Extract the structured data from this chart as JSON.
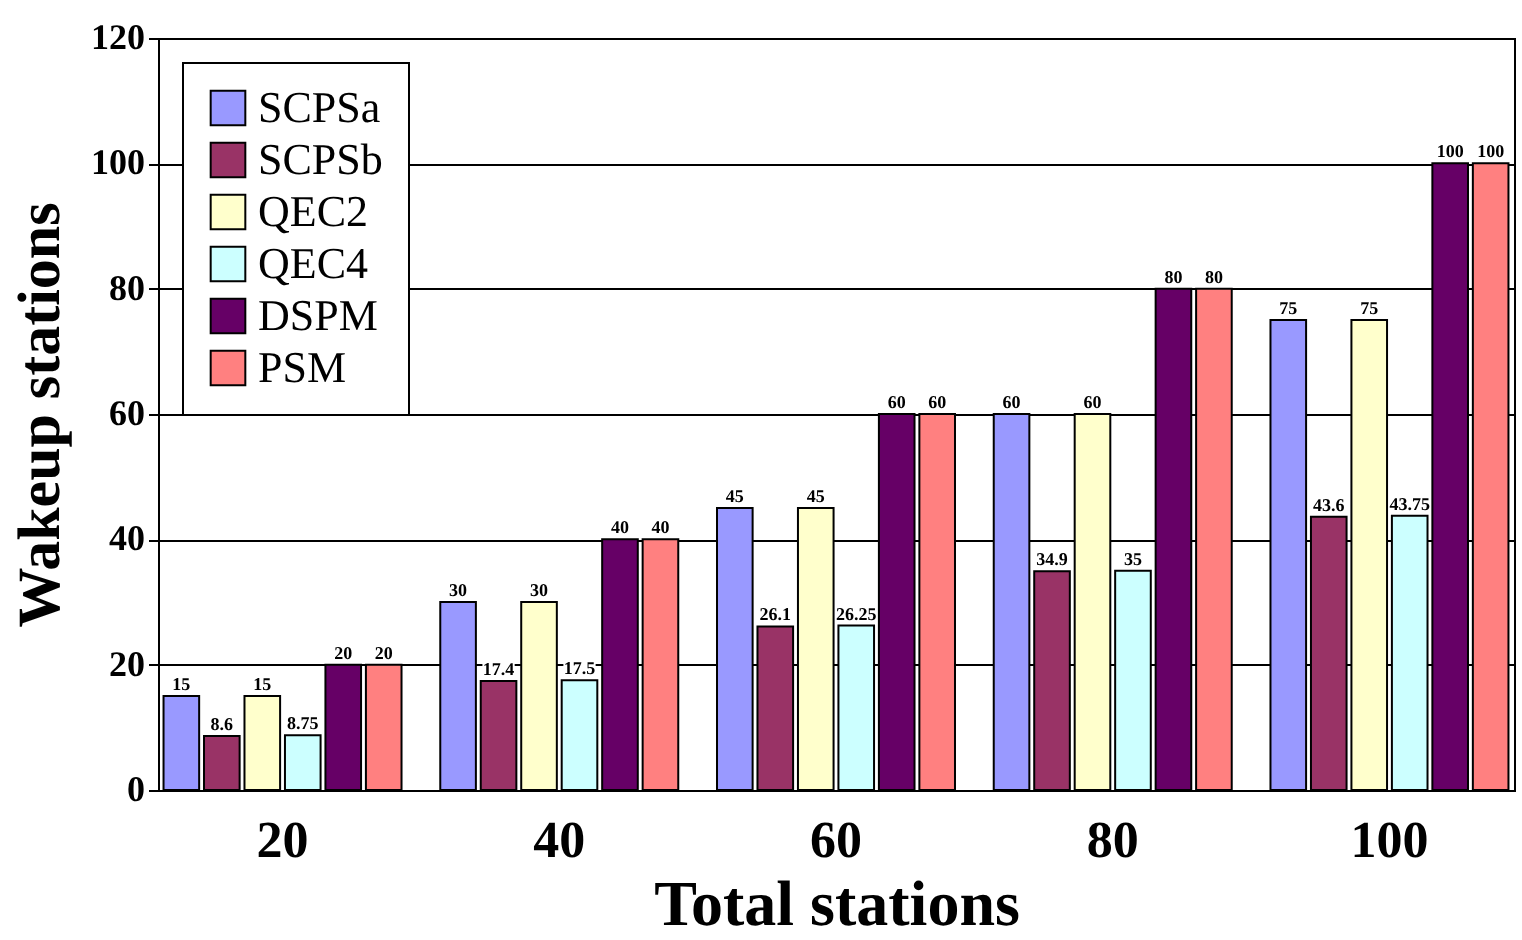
{
  "chart_data": {
    "type": "bar",
    "xlabel": "Total stations",
    "ylabel": "Wakeup stations",
    "categories": [
      "20",
      "40",
      "60",
      "80",
      "100"
    ],
    "series": [
      {
        "name": "SCPSa",
        "color": "#9999ff",
        "values": [
          15,
          30,
          45,
          60,
          75
        ]
      },
      {
        "name": "SCPSb",
        "color": "#993366",
        "values": [
          8.6,
          17.4,
          26.1,
          34.9,
          43.6
        ]
      },
      {
        "name": "QEC2",
        "color": "#ffffcc",
        "values": [
          15,
          30,
          45,
          60,
          75
        ]
      },
      {
        "name": "QEC4",
        "color": "#ccffff",
        "values": [
          8.75,
          17.5,
          26.25,
          35,
          43.75
        ]
      },
      {
        "name": "DSPM",
        "color": "#660066",
        "values": [
          20,
          40,
          60,
          80,
          100
        ]
      },
      {
        "name": "PSM",
        "color": "#ff8080",
        "values": [
          20,
          40,
          60,
          80,
          100
        ]
      }
    ],
    "ylim": [
      0,
      120
    ],
    "yticks": [
      0,
      20,
      40,
      60,
      80,
      100,
      120
    ],
    "grid": "y",
    "legend": "top left",
    "data_labels": true
  }
}
